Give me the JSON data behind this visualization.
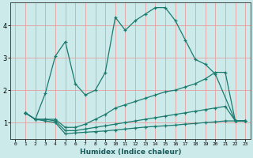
{
  "xlabel": "Humidex (Indice chaleur)",
  "bg_color": "#cdeaea",
  "line_color": "#1a7a6e",
  "grid_major_color": "#e8a0a0",
  "grid_minor_color": "#dde8e8",
  "xlim": [
    -0.5,
    23.5
  ],
  "ylim": [
    0.5,
    4.7
  ],
  "yticks": [
    1,
    2,
    3,
    4
  ],
  "xticks": [
    0,
    1,
    2,
    3,
    4,
    5,
    6,
    7,
    8,
    9,
    10,
    11,
    12,
    13,
    14,
    15,
    16,
    17,
    18,
    19,
    20,
    21,
    22,
    23
  ],
  "series": [
    {
      "x": [
        1,
        2,
        3,
        4,
        5,
        6,
        7,
        8,
        9,
        10,
        11,
        12,
        13,
        14,
        15,
        16,
        17,
        18,
        19,
        20,
        22,
        23
      ],
      "y": [
        1.3,
        1.1,
        1.9,
        3.05,
        3.5,
        2.2,
        1.85,
        2.0,
        2.55,
        4.25,
        3.85,
        4.15,
        4.35,
        4.55,
        4.55,
        4.15,
        3.55,
        2.95,
        2.8,
        2.5,
        1.05,
        1.05
      ]
    },
    {
      "x": [
        1,
        2,
        3,
        4,
        5,
        6,
        7,
        8,
        9,
        10,
        11,
        12,
        13,
        14,
        15,
        16,
        17,
        18,
        19,
        20,
        21,
        22,
        23
      ],
      "y": [
        1.3,
        1.1,
        1.1,
        1.1,
        0.85,
        0.85,
        0.95,
        1.1,
        1.25,
        1.45,
        1.55,
        1.65,
        1.75,
        1.85,
        1.95,
        2.0,
        2.1,
        2.2,
        2.35,
        2.55,
        2.55,
        1.05,
        1.05
      ]
    },
    {
      "x": [
        1,
        2,
        3,
        4,
        5,
        6,
        7,
        8,
        9,
        10,
        11,
        12,
        13,
        14,
        15,
        16,
        17,
        18,
        19,
        20,
        21,
        22,
        23
      ],
      "y": [
        1.3,
        1.1,
        1.1,
        1.05,
        0.75,
        0.75,
        0.8,
        0.85,
        0.9,
        0.95,
        1.0,
        1.05,
        1.1,
        1.15,
        1.2,
        1.25,
        1.3,
        1.35,
        1.4,
        1.45,
        1.5,
        1.05,
        1.05
      ]
    },
    {
      "x": [
        1,
        2,
        3,
        4,
        5,
        6,
        7,
        8,
        9,
        10,
        11,
        12,
        13,
        14,
        15,
        16,
        17,
        18,
        19,
        20,
        21,
        22,
        23
      ],
      "y": [
        1.3,
        1.1,
        1.05,
        1.0,
        0.65,
        0.68,
        0.7,
        0.72,
        0.74,
        0.77,
        0.8,
        0.83,
        0.86,
        0.88,
        0.9,
        0.92,
        0.95,
        0.97,
        1.0,
        1.02,
        1.05,
        1.05,
        1.05
      ]
    }
  ]
}
